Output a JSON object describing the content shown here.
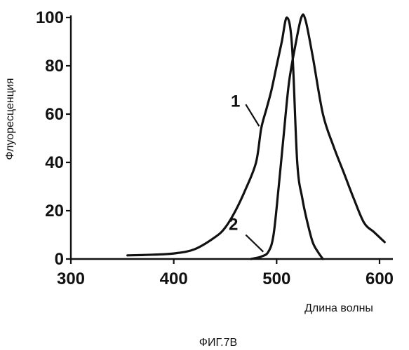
{
  "chart_data": {
    "type": "line",
    "xlabel": "Длина волны",
    "ylabel": "Флуоресценция",
    "xlim": [
      300,
      600
    ],
    "ylim": [
      0,
      100
    ],
    "xticks": [
      "300",
      "400",
      "500",
      "600"
    ],
    "yticks": [
      "0",
      "20",
      "40",
      "60",
      "80",
      "100"
    ],
    "grid": false,
    "series": [
      {
        "name": "1",
        "points": [
          [
            355,
            1.5
          ],
          [
            380,
            1.8
          ],
          [
            400,
            2.3
          ],
          [
            420,
            4
          ],
          [
            440,
            9
          ],
          [
            450,
            13
          ],
          [
            460,
            20
          ],
          [
            470,
            29
          ],
          [
            480,
            40
          ],
          [
            485,
            54
          ],
          [
            490,
            62
          ],
          [
            495,
            70
          ],
          [
            500,
            80
          ],
          [
            505,
            90
          ],
          [
            510,
            100
          ],
          [
            515,
            88
          ],
          [
            520,
            40
          ],
          [
            525,
            25
          ],
          [
            530,
            15
          ],
          [
            535,
            7
          ],
          [
            540,
            3
          ],
          [
            545,
            0
          ]
        ]
      },
      {
        "name": "2",
        "points": [
          [
            475,
            0
          ],
          [
            485,
            1
          ],
          [
            492,
            3
          ],
          [
            497,
            10
          ],
          [
            502,
            30
          ],
          [
            507,
            52
          ],
          [
            512,
            73
          ],
          [
            518,
            88
          ],
          [
            524,
            100
          ],
          [
            528,
            99
          ],
          [
            535,
            84
          ],
          [
            545,
            60
          ],
          [
            555,
            47
          ],
          [
            565,
            36
          ],
          [
            575,
            25
          ],
          [
            585,
            15
          ],
          [
            595,
            11
          ],
          [
            605,
            7
          ]
        ]
      }
    ],
    "annotations": [
      "1",
      "2"
    ]
  },
  "caption": "ФИГ.7В"
}
